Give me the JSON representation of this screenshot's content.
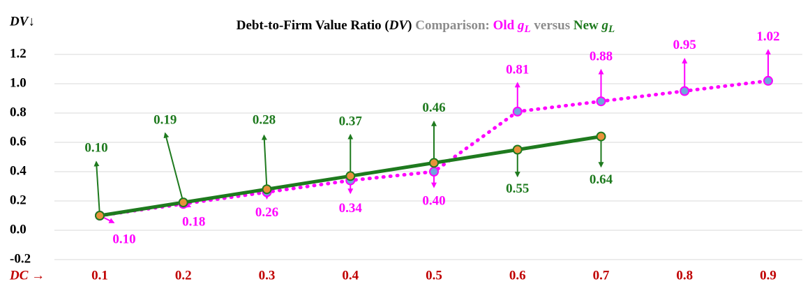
{
  "chart_data": {
    "type": "line",
    "title": [
      "Debt-to-Firm Value Ratio (",
      "DV",
      ")"
    ],
    "subtitle": "Comparison:",
    "conjunction": "versus",
    "y_label": "DV↓",
    "x_label": "DC →",
    "categories": [
      "0.1",
      "0.2",
      "0.3",
      "0.4",
      "0.5",
      "0.6",
      "0.7",
      "0.8",
      "0.9"
    ],
    "ylim": [
      -0.2,
      1.2
    ],
    "yticks": [
      -0.2,
      {
        "value": 0,
        "label": "0.0"
      },
      0.2,
      0.4,
      0.6,
      0.8,
      {
        "value": 1,
        "label": "1.0"
      },
      1.2
    ],
    "grid": true,
    "series": [
      {
        "name": "Old",
        "symbol": "g",
        "subscript": "L",
        "color": "#ff00ff",
        "marker_color": "#6fa8dc",
        "values": [
          0.1,
          0.18,
          0.26,
          0.34,
          0.4,
          0.81,
          0.88,
          0.95,
          1.02
        ],
        "value_labels": [
          "0.10",
          "0.18",
          "0.26",
          "0.34",
          "0.40",
          "0.81",
          "0.88",
          "0.95",
          "1.02"
        ]
      },
      {
        "name": "New",
        "symbol": "g",
        "subscript": "L",
        "color": "#1e7a1e",
        "marker_color": "#e8913a",
        "values": [
          0.1,
          0.19,
          0.28,
          0.37,
          0.46,
          0.55,
          0.64,
          null,
          null
        ],
        "value_labels": [
          "0.10",
          "0.19",
          "0.28",
          "0.37",
          "0.46",
          "0.55",
          "0.64",
          null,
          null
        ]
      }
    ]
  }
}
